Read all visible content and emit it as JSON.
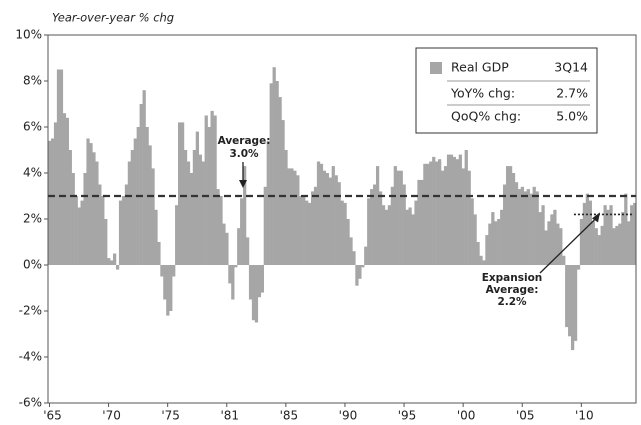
{
  "chart_data": {
    "type": "bar",
    "y_axis_label": "Year-over-year % chg",
    "color": "#a6a6a6",
    "series": [
      {
        "name": "Real GDP",
        "color": "#a6a6a6",
        "values": [
          5.4,
          5.5,
          6.2,
          8.5,
          8.5,
          6.6,
          6.4,
          5.0,
          4.0,
          3.0,
          2.5,
          2.8,
          4.0,
          5.5,
          5.3,
          4.9,
          4.5,
          3.5,
          3.0,
          2.0,
          0.3,
          0.2,
          0.5,
          -0.2,
          2.8,
          3.0,
          3.5,
          4.5,
          5.0,
          5.5,
          6.0,
          7.0,
          7.6,
          6.0,
          5.2,
          4.2,
          2.4,
          1.0,
          -0.5,
          -1.5,
          -2.2,
          -2.0,
          -0.5,
          2.6,
          6.2,
          6.2,
          5.0,
          4.5,
          4.0,
          5.0,
          5.8,
          4.8,
          4.5,
          6.5,
          6.0,
          6.7,
          6.5,
          3.3,
          3.0,
          1.8,
          1.4,
          -0.8,
          -1.5,
          -0.1,
          1.6,
          2.9,
          4.3,
          1.2,
          -1.5,
          -2.4,
          -2.5,
          -1.4,
          -1.2,
          3.4,
          5.4,
          7.9,
          8.6,
          8.0,
          7.3,
          6.3,
          5.0,
          4.2,
          4.2,
          4.1,
          3.9,
          3.0,
          3.0,
          2.8,
          2.7,
          3.2,
          3.4,
          4.5,
          4.4,
          4.1,
          4.0,
          3.8,
          4.3,
          3.9,
          3.6,
          2.8,
          2.7,
          2.0,
          1.2,
          0.6,
          -0.9,
          -0.6,
          -0.1,
          0.8,
          2.9,
          3.3,
          3.5,
          4.3,
          3.2,
          2.6,
          2.4,
          2.6,
          3.4,
          4.3,
          4.1,
          4.1,
          3.5,
          2.4,
          2.5,
          2.2,
          2.8,
          3.7,
          3.7,
          4.4,
          4.4,
          4.5,
          4.7,
          4.5,
          4.6,
          4.1,
          4.3,
          4.8,
          4.8,
          4.7,
          4.6,
          4.8,
          4.2,
          5.0,
          4.1,
          2.9,
          2.2,
          1.0,
          0.4,
          0.2,
          1.3,
          1.8,
          2.3,
          1.9,
          2.0,
          2.4,
          3.5,
          4.3,
          4.3,
          4.0,
          3.6,
          3.3,
          3.4,
          3.2,
          3.3,
          3.1,
          3.4,
          3.2,
          2.3,
          2.6,
          1.5,
          1.9,
          2.2,
          2.4,
          1.8,
          1.6,
          0.4,
          -2.7,
          -3.1,
          -3.7,
          -3.3,
          -0.2,
          2.0,
          2.7,
          3.1,
          2.8,
          1.9,
          1.6,
          1.3,
          1.7,
          2.6,
          2.4,
          2.6,
          1.6,
          1.7,
          1.8,
          2.3,
          3.1,
          1.9,
          2.6,
          2.7
        ]
      }
    ],
    "categories": [
      "'65",
      null,
      null,
      null,
      null,
      null,
      null,
      null,
      null,
      null,
      null,
      null,
      null,
      null,
      null,
      null,
      null,
      null,
      null,
      null,
      "'70",
      null,
      null,
      null,
      null,
      null,
      null,
      null,
      null,
      null,
      null,
      null,
      null,
      null,
      null,
      null,
      null,
      null,
      null,
      null,
      "'75",
      null,
      null,
      null,
      null,
      null,
      null,
      null,
      null,
      null,
      null,
      null,
      null,
      null,
      null,
      null,
      null,
      null,
      null,
      null,
      "'81",
      null,
      null,
      null,
      null,
      null,
      null,
      null,
      null,
      null,
      null,
      null,
      null,
      null,
      null,
      null,
      null,
      null,
      null,
      null,
      "'85",
      null,
      null,
      null,
      null,
      null,
      null,
      null,
      null,
      null,
      null,
      null,
      null,
      null,
      null,
      null,
      null,
      null,
      null,
      null,
      "'90",
      null,
      null,
      null,
      null,
      null,
      null,
      null,
      null,
      null,
      null,
      null,
      null,
      null,
      null,
      null,
      null,
      null,
      null,
      null,
      "'95",
      null,
      null,
      null,
      null,
      null,
      null,
      null,
      null,
      null,
      null,
      null,
      null,
      null,
      null,
      null,
      null,
      null,
      null,
      null,
      "'00",
      null,
      null,
      null,
      null,
      null,
      null,
      null,
      null,
      null,
      null,
      null,
      null,
      null,
      null,
      null,
      null,
      null,
      null,
      null,
      "'05",
      null,
      null,
      null,
      null,
      null,
      null,
      null,
      null,
      null,
      null,
      null,
      null,
      null,
      null,
      null,
      null,
      null,
      null,
      null,
      "'10",
      null,
      null,
      null,
      null,
      null,
      null,
      null,
      null,
      null,
      null,
      null,
      null,
      null,
      null,
      null,
      null,
      null,
      null
    ],
    "ylim": [
      -6,
      10
    ],
    "yticks": [
      {
        "value": -6,
        "label": "-6%"
      },
      {
        "value": -4,
        "label": "-4%"
      },
      {
        "value": -2,
        "label": "-2%"
      },
      {
        "value": 0,
        "label": "0%"
      },
      {
        "value": 2,
        "label": "2%"
      },
      {
        "value": 4,
        "label": "4%"
      },
      {
        "value": 6,
        "label": "6%"
      },
      {
        "value": 8,
        "label": "8%"
      },
      {
        "value": 10,
        "label": "10%"
      }
    ],
    "grid": false,
    "average": {
      "value": 3.0,
      "label_title": "Average:",
      "label_value": "3.0%"
    },
    "expansion_average": {
      "value": 2.2,
      "label_lines": [
        "Expansion",
        "Average:",
        "2.2%"
      ],
      "start_index": 178
    },
    "info_box": {
      "period": "3Q14",
      "rows": [
        [
          "YoY% chg:",
          "2.7%"
        ],
        [
          "QoQ% chg:",
          "5.0%"
        ]
      ]
    }
  }
}
